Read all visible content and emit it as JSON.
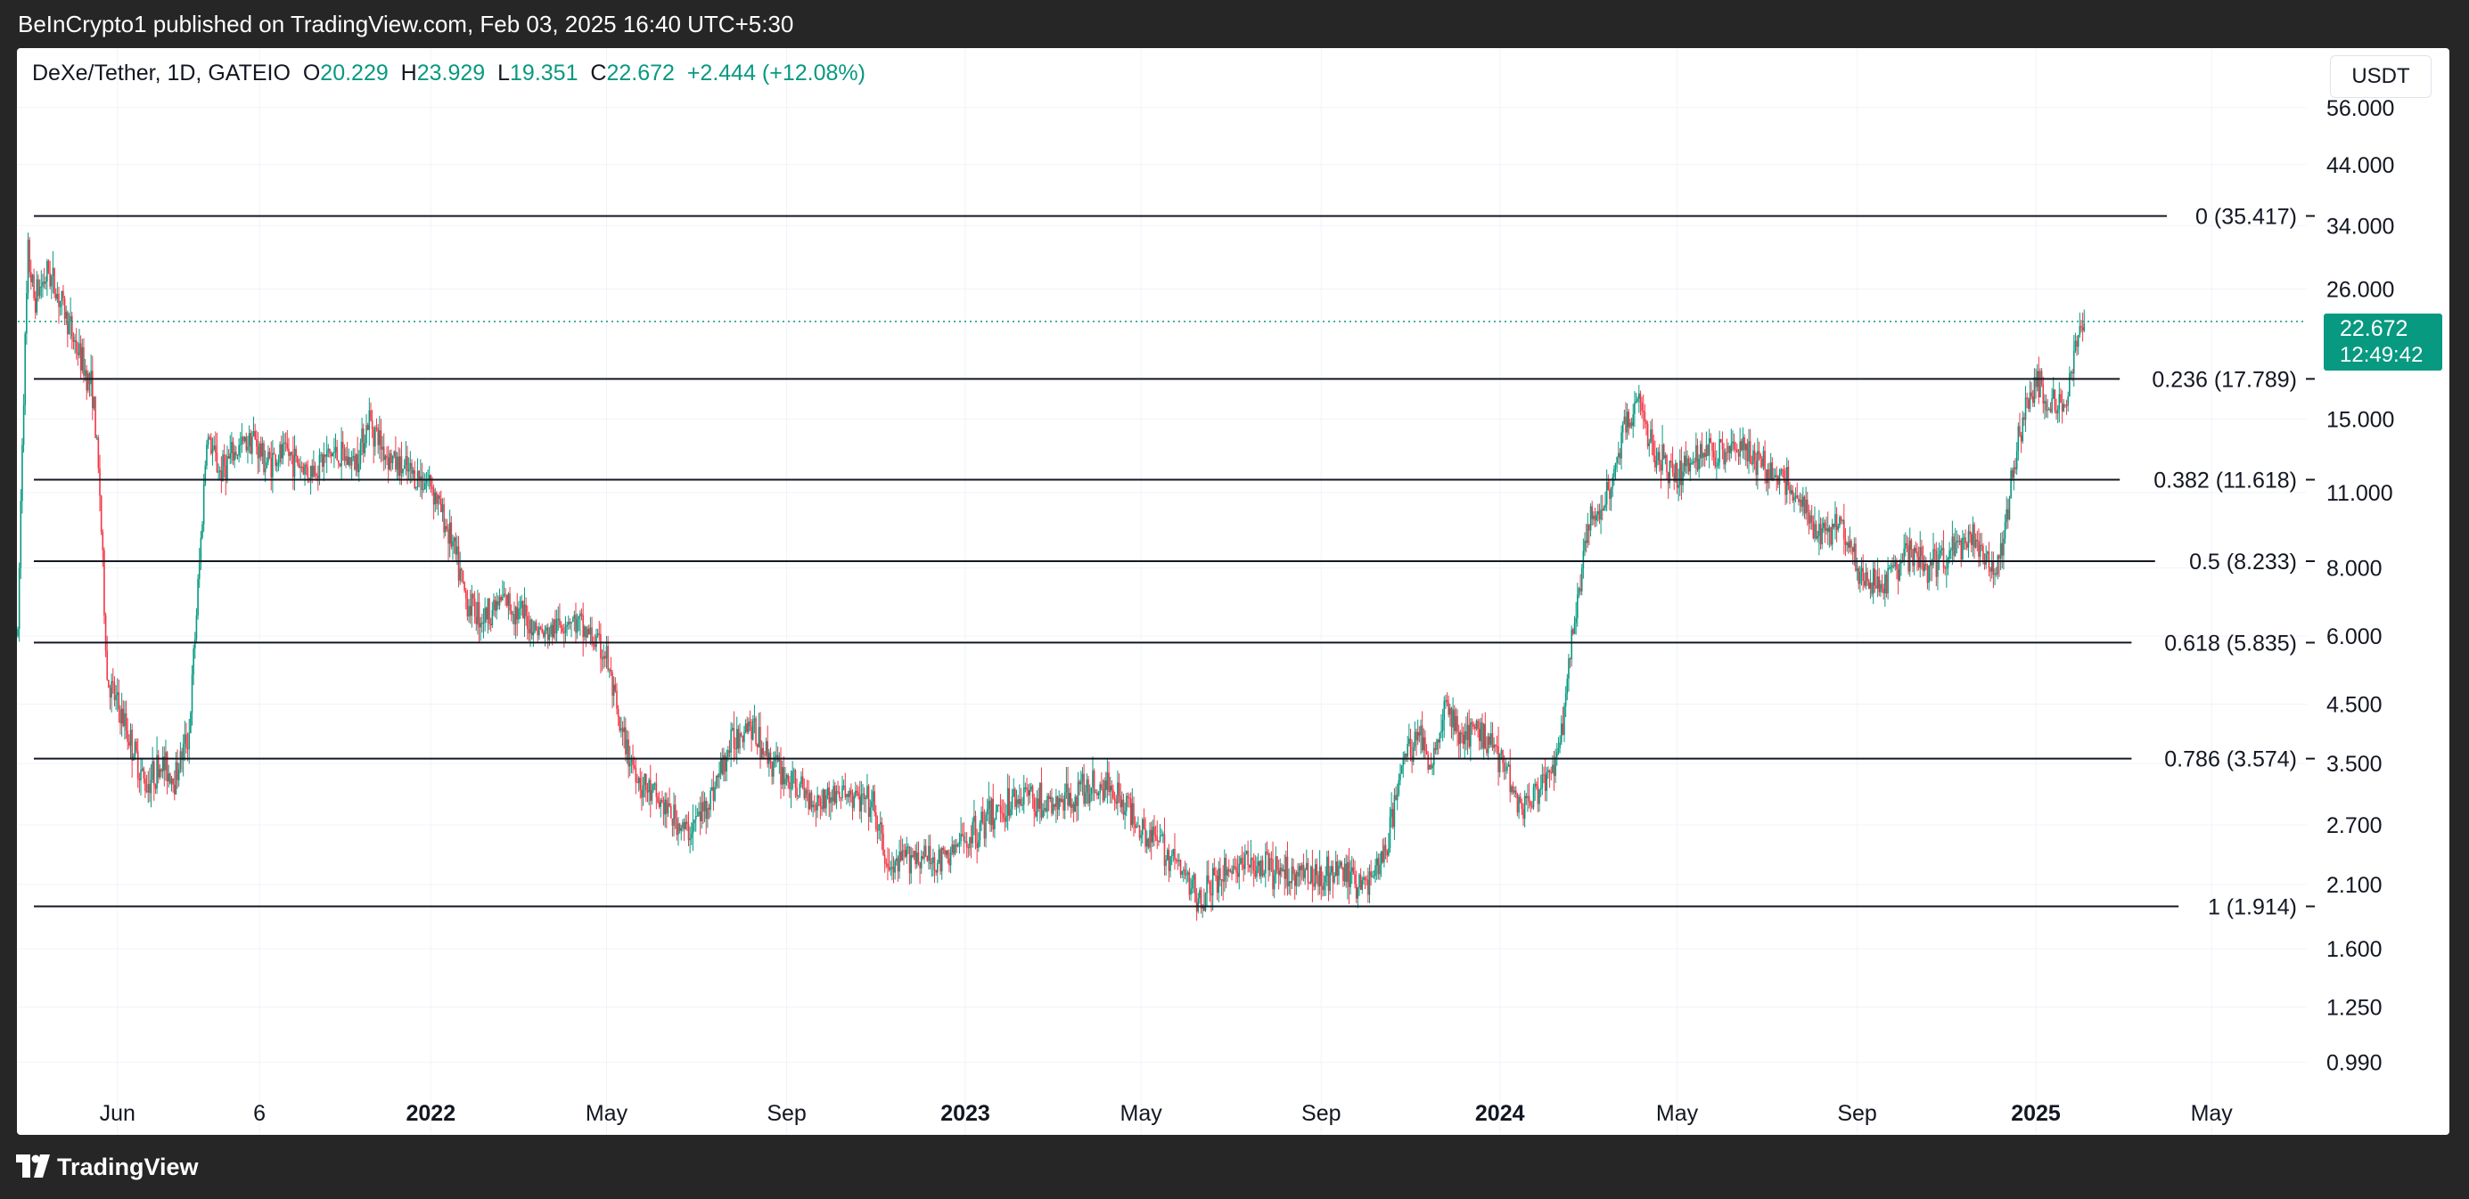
{
  "header": {
    "published": "BeInCrypto1 published on TradingView.com, Feb 03, 2025 16:40 UTC+5:30"
  },
  "legend": {
    "symbol": "DeXe/Tether, 1D, GATEIO",
    "open_label": "O",
    "open": "20.229",
    "high_label": "H",
    "high": "23.929",
    "low_label": "L",
    "low": "19.351",
    "close_label": "C",
    "close": "22.672",
    "change": "+2.444 (+12.08%)"
  },
  "currency": "USDT",
  "last_price": {
    "value": "22.672",
    "countdown": "12:49:42"
  },
  "footer": {
    "brand": "TradingView"
  },
  "colors": {
    "up": "#089981",
    "down": "#f23645",
    "background": "#ffffff",
    "frame": "#262626"
  },
  "chart_data": {
    "type": "candlestick",
    "y_scale": "log",
    "ylim": [
      0.86,
      72
    ],
    "y_ticks": [
      "56.000",
      "44.000",
      "34.000",
      "26.000",
      "15.000",
      "11.000",
      "8.000",
      "6.000",
      "4.500",
      "3.500",
      "2.700",
      "2.100",
      "1.600",
      "1.250",
      "0.990"
    ],
    "x_ticks": [
      {
        "label": "Jun",
        "date": "2021-06-01",
        "bold": false
      },
      {
        "label": "6",
        "date": "2021-09-06",
        "bold": false
      },
      {
        "label": "2022",
        "date": "2022-01-01",
        "bold": true
      },
      {
        "label": "May",
        "date": "2022-05-01",
        "bold": false
      },
      {
        "label": "Sep",
        "date": "2022-09-01",
        "bold": false
      },
      {
        "label": "2023",
        "date": "2023-01-01",
        "bold": true
      },
      {
        "label": "May",
        "date": "2023-05-01",
        "bold": false
      },
      {
        "label": "Sep",
        "date": "2023-09-01",
        "bold": false
      },
      {
        "label": "2024",
        "date": "2024-01-01",
        "bold": true
      },
      {
        "label": "May",
        "date": "2024-05-01",
        "bold": false
      },
      {
        "label": "Sep",
        "date": "2024-09-01",
        "bold": false
      },
      {
        "label": "2025",
        "date": "2025-01-01",
        "bold": true
      },
      {
        "label": "May",
        "date": "2025-05-01",
        "bold": false
      }
    ],
    "xlim": [
      "2021-03-25",
      "2025-07-05"
    ],
    "fib_levels": [
      {
        "label": "0 (35.417)",
        "value": 35.417
      },
      {
        "label": "0.236 (17.789)",
        "value": 17.789
      },
      {
        "label": "0.382 (11.618)",
        "value": 11.618
      },
      {
        "label": "0.5 (8.233)",
        "value": 8.233
      },
      {
        "label": "0.618 (5.835)",
        "value": 5.835
      },
      {
        "label": "0.786 (3.574)",
        "value": 3.574
      },
      {
        "label": "1 (1.914)",
        "value": 1.914
      }
    ],
    "price_line": 22.672,
    "series": [
      {
        "values": [
          [
            "2021-03-25",
            6.0
          ],
          [
            "2021-03-28",
            14.0
          ],
          [
            "2021-04-01",
            30.0
          ],
          [
            "2021-04-05",
            25.0
          ],
          [
            "2021-04-15",
            28.0
          ],
          [
            "2021-04-25",
            24.0
          ],
          [
            "2021-05-05",
            20.0
          ],
          [
            "2021-05-15",
            17.0
          ],
          [
            "2021-05-20",
            11.0
          ],
          [
            "2021-05-25",
            5.0
          ],
          [
            "2021-06-05",
            4.2
          ],
          [
            "2021-06-20",
            3.2
          ],
          [
            "2021-07-01",
            3.5
          ],
          [
            "2021-07-10",
            3.3
          ],
          [
            "2021-07-20",
            4.0
          ],
          [
            "2021-07-28",
            9.0
          ],
          [
            "2021-08-01",
            14.0
          ],
          [
            "2021-08-10",
            12.0
          ],
          [
            "2021-08-20",
            13.0
          ],
          [
            "2021-09-01",
            14.0
          ],
          [
            "2021-09-10",
            12.5
          ],
          [
            "2021-09-25",
            13.0
          ],
          [
            "2021-10-10",
            12.0
          ],
          [
            "2021-10-25",
            13.0
          ],
          [
            "2021-11-10",
            12.5
          ],
          [
            "2021-11-20",
            15.0
          ],
          [
            "2021-12-01",
            13.0
          ],
          [
            "2021-12-15",
            12.0
          ],
          [
            "2022-01-01",
            11.5
          ],
          [
            "2022-01-15",
            9.0
          ],
          [
            "2022-01-25",
            7.0
          ],
          [
            "2022-02-05",
            6.5
          ],
          [
            "2022-02-20",
            7.0
          ],
          [
            "2022-03-05",
            6.5
          ],
          [
            "2022-03-20",
            6.0
          ],
          [
            "2022-04-05",
            6.5
          ],
          [
            "2022-04-20",
            6.0
          ],
          [
            "2022-05-01",
            5.5
          ],
          [
            "2022-05-10",
            4.0
          ],
          [
            "2022-05-25",
            3.2
          ],
          [
            "2022-06-10",
            2.9
          ],
          [
            "2022-06-25",
            2.6
          ],
          [
            "2022-07-10",
            3.0
          ],
          [
            "2022-07-25",
            3.8
          ],
          [
            "2022-08-05",
            4.2
          ],
          [
            "2022-08-20",
            3.6
          ],
          [
            "2022-09-05",
            3.2
          ],
          [
            "2022-09-20",
            3.0
          ],
          [
            "2022-10-10",
            3.1
          ],
          [
            "2022-10-30",
            2.9
          ],
          [
            "2022-11-10",
            2.2
          ],
          [
            "2022-11-25",
            2.4
          ],
          [
            "2022-12-15",
            2.3
          ],
          [
            "2023-01-05",
            2.6
          ],
          [
            "2023-01-25",
            2.9
          ],
          [
            "2023-02-10",
            3.1
          ],
          [
            "2023-03-01",
            2.9
          ],
          [
            "2023-03-20",
            3.1
          ],
          [
            "2023-04-10",
            3.2
          ],
          [
            "2023-05-01",
            2.7
          ],
          [
            "2023-05-20",
            2.4
          ],
          [
            "2023-06-10",
            1.98
          ],
          [
            "2023-06-25",
            2.2
          ],
          [
            "2023-07-10",
            2.3
          ],
          [
            "2023-08-01",
            2.2
          ],
          [
            "2023-08-25",
            2.2
          ],
          [
            "2023-09-15",
            2.2
          ],
          [
            "2023-10-01",
            2.1
          ],
          [
            "2023-10-15",
            2.4
          ],
          [
            "2023-10-25",
            3.4
          ],
          [
            "2023-11-05",
            4.0
          ],
          [
            "2023-11-15",
            3.5
          ],
          [
            "2023-11-25",
            4.5
          ],
          [
            "2023-12-05",
            3.9
          ],
          [
            "2023-12-20",
            4.0
          ],
          [
            "2024-01-05",
            3.5
          ],
          [
            "2024-01-15",
            2.9
          ],
          [
            "2024-01-28",
            3.1
          ],
          [
            "2024-02-10",
            3.6
          ],
          [
            "2024-02-20",
            6.0
          ],
          [
            "2024-03-01",
            9.5
          ],
          [
            "2024-03-15",
            11.0
          ],
          [
            "2024-03-28",
            15.0
          ],
          [
            "2024-04-05",
            16.0
          ],
          [
            "2024-04-15",
            13.0
          ],
          [
            "2024-05-01",
            12.0
          ],
          [
            "2024-05-20",
            13.0
          ],
          [
            "2024-06-10",
            13.5
          ],
          [
            "2024-06-25",
            12.5
          ],
          [
            "2024-07-10",
            11.8
          ],
          [
            "2024-07-25",
            10.5
          ],
          [
            "2024-08-05",
            9.0
          ],
          [
            "2024-08-20",
            10.0
          ],
          [
            "2024-09-05",
            7.5
          ],
          [
            "2024-09-20",
            7.5
          ],
          [
            "2024-10-05",
            8.5
          ],
          [
            "2024-10-20",
            8.0
          ],
          [
            "2024-11-05",
            8.5
          ],
          [
            "2024-11-20",
            9.0
          ],
          [
            "2024-12-05",
            7.8
          ],
          [
            "2024-12-12",
            10.0
          ],
          [
            "2024-12-20",
            14.0
          ],
          [
            "2025-01-01",
            18.0
          ],
          [
            "2025-01-10",
            16.0
          ],
          [
            "2025-01-20",
            15.5
          ],
          [
            "2025-01-28",
            20.0
          ],
          [
            "2025-02-03",
            22.672
          ]
        ]
      }
    ]
  }
}
